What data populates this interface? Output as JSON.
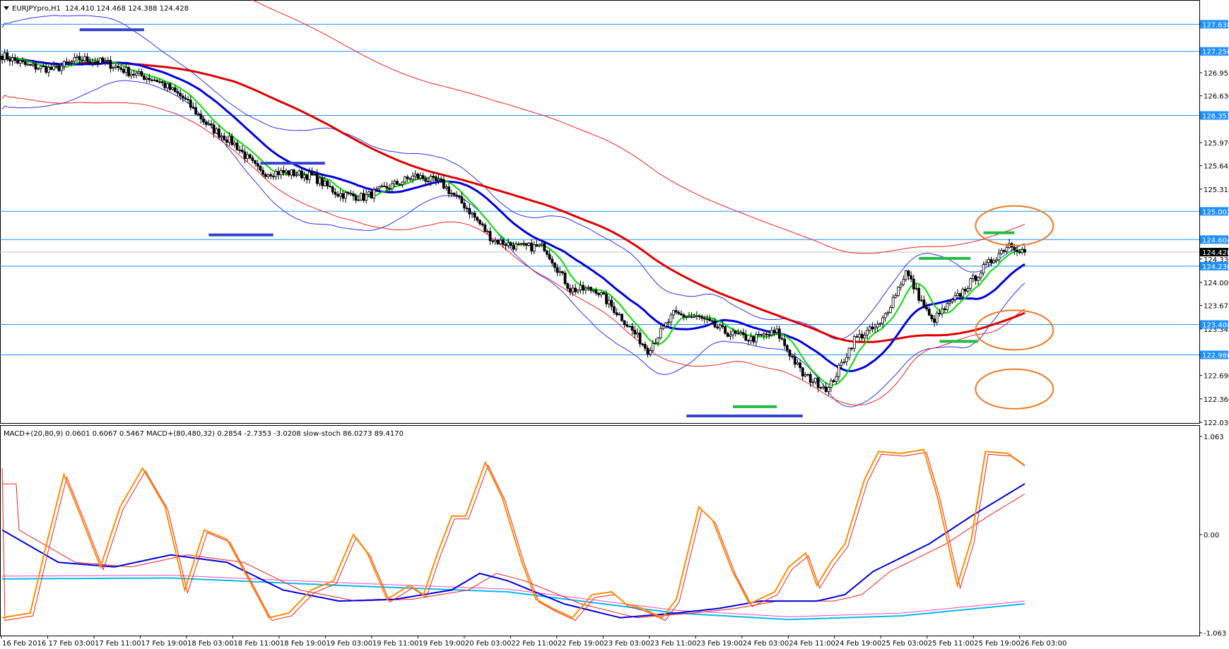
{
  "header": {
    "symbol_label": "EURJPYpro,H1",
    "ohlc_label": "124.410 124.468 124.388 124.428"
  },
  "sub_header": {
    "indicators_label": "MACD+(20,80,9) 0.0601 0.6067 0.5467  MACD+(80,480,32) 0.2854 -2.7353 -3.0208  slow-stoch 86.0273 89.4170"
  },
  "colors": {
    "level_line": "#1e90ff",
    "level_tag": "#1e90ff",
    "bull_body": "#ffffff",
    "bear_body": "#000000",
    "ma_fast": "#00dd00",
    "ma_mid": "#0000dd",
    "ma_slow": "#dd0000",
    "envelope_blue": "#3030ee",
    "envelope_red": "#ee2020",
    "support_resistance_blue": "#3344cc",
    "support_resistance_green": "#22bb44",
    "highlight_circle": "#ee7722",
    "stoch_main": "#ff8c00",
    "stoch_signal": "#ee2020",
    "macd_fast": "#0000dd",
    "macd_fast_signal": "#ee2020",
    "macd_slow": "#00bbee",
    "macd_slow_signal": "#ff44bb"
  },
  "chart_data": {
    "type": "line",
    "subtype": "candlestick",
    "title": "EURJPYpro,H1",
    "price_axis_ticks": [
      "126.955",
      "126.630",
      "125.970",
      "125.645",
      "125.315",
      "124.330",
      "124.000",
      "123.675",
      "123.345",
      "122.690",
      "122.360",
      "122.030"
    ],
    "price_levels": [
      {
        "value": 127.638,
        "label": "127.638"
      },
      {
        "value": 127.256,
        "label": "127.256"
      },
      {
        "value": 126.353,
        "label": "126.353"
      },
      {
        "value": 125.002,
        "label": "125.002"
      },
      {
        "value": 124.604,
        "label": "124.604"
      },
      {
        "value": 124.23,
        "label": "124.230"
      },
      {
        "value": 123.408,
        "label": "123.408"
      },
      {
        "value": 122.98,
        "label": "122.980"
      }
    ],
    "current_price": {
      "value": 124.428,
      "label": "124.428"
    },
    "ylim": [
      122.03,
      127.9
    ],
    "time_axis_labels": [
      "16 Feb 2016",
      "17 Feb 03:00",
      "17 Feb 11:00",
      "17 Feb 19:00",
      "18 Feb 03:00",
      "18 Feb 11:00",
      "18 Feb 19:00",
      "19 Feb 03:00",
      "19 Feb 11:00",
      "19 Feb 19:00",
      "20 Feb 03:00",
      "22 Feb 11:00",
      "22 Feb 19:00",
      "23 Feb 03:00",
      "23 Feb 11:00",
      "23 Feb 19:00",
      "24 Feb 03:00",
      "24 Feb 11:00",
      "24 Feb 19:00",
      "25 Feb 03:00",
      "25 Feb 11:00",
      "25 Feb 19:00",
      "26 Feb 03:00"
    ],
    "close_anchors": [
      [
        0,
        127.2
      ],
      [
        10,
        127.05
      ],
      [
        20,
        127.0
      ],
      [
        30,
        127.15
      ],
      [
        40,
        127.1
      ],
      [
        50,
        126.95
      ],
      [
        60,
        126.85
      ],
      [
        70,
        126.6
      ],
      [
        80,
        126.2
      ],
      [
        90,
        125.95
      ],
      [
        100,
        125.55
      ],
      [
        110,
        125.55
      ],
      [
        120,
        125.5
      ],
      [
        130,
        125.25
      ],
      [
        140,
        125.2
      ],
      [
        150,
        125.35
      ],
      [
        160,
        125.5
      ],
      [
        170,
        125.4
      ],
      [
        180,
        125.05
      ],
      [
        190,
        124.6
      ],
      [
        200,
        124.5
      ],
      [
        210,
        124.5
      ],
      [
        220,
        123.9
      ],
      [
        230,
        123.9
      ],
      [
        240,
        123.5
      ],
      [
        250,
        123.05
      ],
      [
        260,
        123.55
      ],
      [
        270,
        123.5
      ],
      [
        280,
        123.3
      ],
      [
        290,
        123.2
      ],
      [
        300,
        123.3
      ],
      [
        310,
        122.7
      ],
      [
        320,
        122.5
      ],
      [
        330,
        123.2
      ],
      [
        340,
        123.4
      ],
      [
        350,
        124.15
      ],
      [
        360,
        123.45
      ],
      [
        370,
        123.8
      ],
      [
        380,
        124.2
      ],
      [
        390,
        124.55
      ],
      [
        396,
        124.428
      ]
    ],
    "bar_count": 397,
    "trend_marks": [
      {
        "color": "blue",
        "bar_start": 30,
        "bar_end": 55,
        "price": 127.56
      },
      {
        "color": "blue",
        "bar_start": 100,
        "bar_end": 125,
        "price": 125.68
      },
      {
        "color": "blue",
        "bar_start": 80,
        "bar_end": 105,
        "price": 124.67
      },
      {
        "color": "blue",
        "bar_start": 265,
        "bar_end": 310,
        "price": 122.12
      },
      {
        "color": "green",
        "bar_start": 283,
        "bar_end": 300,
        "price": 122.25
      },
      {
        "color": "green",
        "bar_start": 355,
        "bar_end": 375,
        "price": 124.34
      },
      {
        "color": "green",
        "bar_start": 363,
        "bar_end": 378,
        "price": 123.17
      },
      {
        "color": "green",
        "bar_start": 380,
        "bar_end": 392,
        "price": 124.7
      }
    ],
    "highlight_circles": [
      {
        "bar": 392,
        "price": 124.8
      },
      {
        "bar": 392,
        "price": 123.33
      },
      {
        "bar": 392,
        "price": 122.5
      }
    ],
    "oscillator": {
      "ylim": [
        -1.063,
        1.063
      ],
      "tick_labels": [
        "1.063",
        "0.00",
        "-1.063"
      ],
      "stoch_anchors": [
        [
          0,
          -0.9
        ],
        [
          10,
          -0.85
        ],
        [
          15,
          -0.2
        ],
        [
          22,
          0.65
        ],
        [
          28,
          0.2
        ],
        [
          35,
          -0.35
        ],
        [
          42,
          0.3
        ],
        [
          50,
          0.72
        ],
        [
          58,
          0.3
        ],
        [
          65,
          -0.6
        ],
        [
          72,
          0.05
        ],
        [
          80,
          -0.05
        ],
        [
          88,
          -0.5
        ],
        [
          95,
          -0.9
        ],
        [
          102,
          -0.85
        ],
        [
          110,
          -0.6
        ],
        [
          118,
          -0.5
        ],
        [
          125,
          0.0
        ],
        [
          130,
          -0.2
        ],
        [
          137,
          -0.7
        ],
        [
          145,
          -0.55
        ],
        [
          150,
          -0.65
        ],
        [
          155,
          -0.2
        ],
        [
          160,
          0.2
        ],
        [
          165,
          0.2
        ],
        [
          172,
          0.78
        ],
        [
          178,
          0.4
        ],
        [
          185,
          -0.3
        ],
        [
          190,
          -0.7
        ],
        [
          196,
          -0.8
        ],
        [
          203,
          -0.9
        ],
        [
          210,
          -0.65
        ],
        [
          217,
          -0.62
        ],
        [
          222,
          -0.75
        ],
        [
          228,
          -0.8
        ],
        [
          235,
          -0.9
        ],
        [
          240,
          -0.7
        ],
        [
          248,
          0.3
        ],
        [
          253,
          0.15
        ],
        [
          260,
          -0.4
        ],
        [
          266,
          -0.75
        ],
        [
          275,
          -0.62
        ],
        [
          280,
          -0.35
        ],
        [
          286,
          -0.2
        ],
        [
          290,
          -0.55
        ],
        [
          295,
          -0.3
        ],
        [
          300,
          -0.1
        ],
        [
          307,
          0.6
        ],
        [
          312,
          0.9
        ],
        [
          320,
          0.88
        ],
        [
          328,
          0.92
        ],
        [
          333,
          0.4
        ],
        [
          340,
          -0.55
        ],
        [
          345,
          -0.05
        ],
        [
          350,
          0.9
        ],
        [
          358,
          0.88
        ],
        [
          364,
          0.75
        ]
      ],
      "macd_fast_anchors": [
        [
          0,
          0.05
        ],
        [
          20,
          -0.3
        ],
        [
          40,
          -0.35
        ],
        [
          60,
          -0.22
        ],
        [
          80,
          -0.3
        ],
        [
          100,
          -0.6
        ],
        [
          120,
          -0.72
        ],
        [
          140,
          -0.7
        ],
        [
          160,
          -0.6
        ],
        [
          170,
          -0.42
        ],
        [
          180,
          -0.5
        ],
        [
          200,
          -0.75
        ],
        [
          220,
          -0.9
        ],
        [
          240,
          -0.85
        ],
        [
          255,
          -0.8
        ],
        [
          270,
          -0.72
        ],
        [
          290,
          -0.72
        ],
        [
          300,
          -0.65
        ],
        [
          310,
          -0.4
        ],
        [
          330,
          -0.1
        ],
        [
          345,
          0.2
        ],
        [
          364,
          0.55
        ]
      ],
      "macd_slow_anchors": [
        [
          0,
          -0.48
        ],
        [
          60,
          -0.47
        ],
        [
          120,
          -0.55
        ],
        [
          180,
          -0.62
        ],
        [
          240,
          -0.85
        ],
        [
          280,
          -0.92
        ],
        [
          320,
          -0.88
        ],
        [
          364,
          -0.75
        ]
      ]
    }
  }
}
